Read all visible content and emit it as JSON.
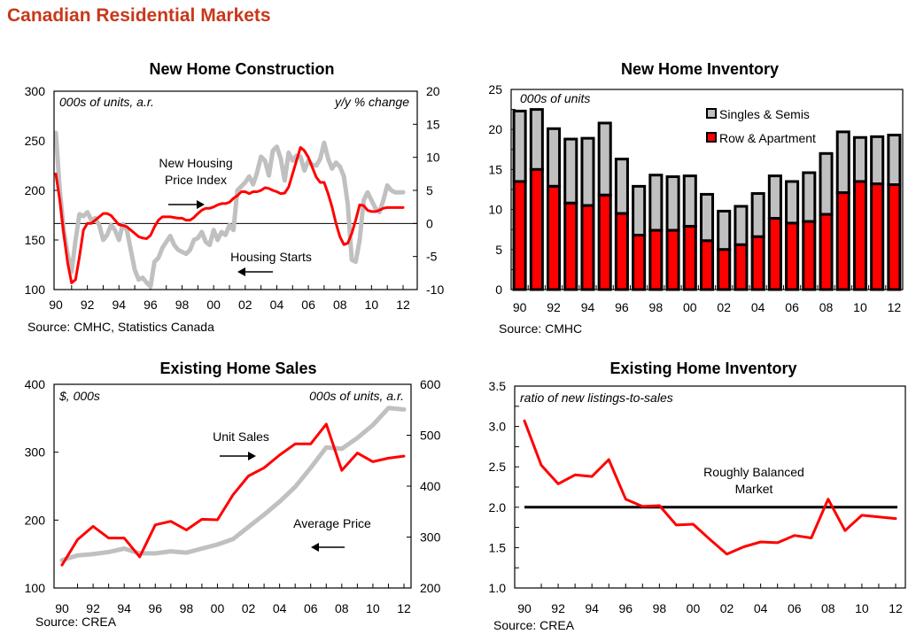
{
  "page": {
    "title": "Canadian Residential Markets"
  },
  "colors": {
    "title": "#c8381b",
    "red": "#ff0000",
    "grey": "#c0c0c0",
    "black": "#000000"
  },
  "chart_data": [
    {
      "id": "new_home_construction",
      "type": "line",
      "title": "New Home Construction",
      "left_unit": "000s of units, a.r.",
      "right_unit": "y/y % change",
      "source": "Source: CMHC, Statistics Canada",
      "ylim_left": [
        100,
        300
      ],
      "yticks_left": [
        "100",
        "150",
        "200",
        "250",
        "300"
      ],
      "ylim_right": [
        -10,
        20
      ],
      "yticks_right": [
        "-10",
        "-5",
        "0",
        "5",
        "10",
        "15",
        "20"
      ],
      "xlim": [
        1990,
        2012
      ],
      "xtick_labels": [
        "90",
        "92",
        "94",
        "96",
        "98",
        "00",
        "02",
        "04",
        "06",
        "08",
        "10",
        "12"
      ],
      "zero_line_right": 0,
      "annotations": [
        {
          "text_lines": [
            "New Housing",
            "Price Index"
          ],
          "arrow": "right"
        },
        {
          "text_lines": [
            "Housing Starts"
          ],
          "arrow": "left"
        }
      ],
      "series": [
        {
          "name": "Housing Starts",
          "axis": "left",
          "color": "#c0c0c0",
          "x": [
            1990.0,
            1990.25,
            1990.5,
            1990.75,
            1991.0,
            1991.25,
            1991.5,
            1991.75,
            1992.0,
            1992.25,
            1992.5,
            1992.75,
            1993.0,
            1993.25,
            1993.5,
            1993.75,
            1994.0,
            1994.25,
            1994.5,
            1994.75,
            1995.0,
            1995.25,
            1995.5,
            1995.75,
            1996.0,
            1996.25,
            1996.5,
            1996.75,
            1997.0,
            1997.25,
            1997.5,
            1997.75,
            1998.0,
            1998.25,
            1998.5,
            1998.75,
            1999.0,
            1999.25,
            1999.5,
            1999.75,
            2000.0,
            2000.25,
            2000.5,
            2000.75,
            2001.0,
            2001.25,
            2001.5,
            2001.75,
            2002.0,
            2002.25,
            2002.5,
            2002.75,
            2003.0,
            2003.25,
            2003.5,
            2003.75,
            2004.0,
            2004.25,
            2004.5,
            2004.75,
            2005.0,
            2005.25,
            2005.5,
            2005.75,
            2006.0,
            2006.25,
            2006.5,
            2006.75,
            2007.0,
            2007.25,
            2007.5,
            2007.75,
            2008.0,
            2008.25,
            2008.5,
            2008.75,
            2009.0,
            2009.25,
            2009.5,
            2009.75,
            2010.0,
            2010.25,
            2010.5,
            2010.75,
            2011.0,
            2011.25,
            2011.5,
            2011.75,
            2012.0
          ],
          "values": [
            258,
            200,
            160,
            135,
            118,
            150,
            176,
            174,
            178,
            170,
            172,
            165,
            150,
            155,
            165,
            160,
            150,
            166,
            160,
            140,
            120,
            110,
            112,
            107,
            103,
            128,
            132,
            142,
            148,
            154,
            145,
            140,
            138,
            136,
            140,
            150,
            152,
            158,
            148,
            145,
            160,
            150,
            158,
            155,
            165,
            160,
            200,
            204,
            208,
            214,
            206,
            218,
            234,
            230,
            215,
            240,
            244,
            232,
            210,
            238,
            230,
            235,
            234,
            220,
            230,
            226,
            225,
            232,
            248,
            232,
            222,
            228,
            224,
            214,
            186,
            130,
            128,
            150,
            190,
            198,
            190,
            182,
            178,
            190,
            205,
            200,
            198,
            198,
            198
          ],
          "unit": "000s of units, a.r."
        },
        {
          "name": "New Housing Price Index",
          "axis": "right",
          "color": "#ff0000",
          "x": [
            1990.0,
            1990.25,
            1990.5,
            1990.75,
            1991.0,
            1991.25,
            1991.5,
            1991.75,
            1992.0,
            1992.25,
            1992.5,
            1992.75,
            1993.0,
            1993.25,
            1993.5,
            1993.75,
            1994.0,
            1994.25,
            1994.5,
            1994.75,
            1995.0,
            1995.25,
            1995.5,
            1995.75,
            1996.0,
            1996.25,
            1996.5,
            1996.75,
            1997.0,
            1997.25,
            1997.5,
            1997.75,
            1998.0,
            1998.25,
            1998.5,
            1998.75,
            1999.0,
            1999.25,
            1999.5,
            1999.75,
            2000.0,
            2000.25,
            2000.5,
            2000.75,
            2001.0,
            2001.25,
            2001.5,
            2001.75,
            2002.0,
            2002.25,
            2002.5,
            2002.75,
            2003.0,
            2003.25,
            2003.5,
            2003.75,
            2004.0,
            2004.25,
            2004.5,
            2004.75,
            2005.0,
            2005.25,
            2005.5,
            2005.75,
            2006.0,
            2006.25,
            2006.5,
            2006.75,
            2007.0,
            2007.25,
            2007.5,
            2007.75,
            2008.0,
            2008.25,
            2008.5,
            2008.75,
            2009.0,
            2009.25,
            2009.5,
            2009.75,
            2010.0,
            2010.25,
            2010.5,
            2010.75,
            2011.0,
            2011.25,
            2011.5,
            2011.75,
            2012.0
          ],
          "values": [
            7.5,
            3.5,
            -1.5,
            -6,
            -9,
            -8.5,
            -5,
            -1,
            0,
            0,
            0.5,
            1,
            1.5,
            1.5,
            1.2,
            0.5,
            -0.2,
            -0.3,
            -0.5,
            -1,
            -1.5,
            -2,
            -2.2,
            -2.3,
            -1.8,
            -0.5,
            0.5,
            1,
            1,
            1,
            0.9,
            0.8,
            0.8,
            0.5,
            0.5,
            0.9,
            1.5,
            2,
            2.3,
            2.3,
            2.5,
            2.8,
            3,
            3,
            3.2,
            3.8,
            4.2,
            4.8,
            4.8,
            4.5,
            4.8,
            4.8,
            5,
            5.4,
            5.3,
            5,
            4.8,
            4.5,
            4.6,
            5.5,
            7.5,
            9.5,
            11.5,
            11,
            10,
            8.5,
            7,
            6.2,
            6.2,
            4.5,
            2.5,
            0,
            -2,
            -3.2,
            -3,
            -1.5,
            0.5,
            2.8,
            2.7,
            2,
            1.8,
            1.8,
            2,
            2.3,
            2.4,
            2.4,
            2.4,
            2.4,
            2.4
          ],
          "unit": "y/y % change"
        }
      ]
    },
    {
      "id": "new_home_inventory",
      "type": "bar",
      "stacked": true,
      "title": "New Home Inventory",
      "unit": "000s of units",
      "source": "Source: CMHC",
      "ylim": [
        0,
        25
      ],
      "yticks": [
        "0",
        "5",
        "10",
        "15",
        "20",
        "25"
      ],
      "categories": [
        "1990",
        "1991",
        "1992",
        "1993",
        "1994",
        "1995",
        "1996",
        "1997",
        "1998",
        "1999",
        "2000",
        "2001",
        "2002",
        "2003",
        "2004",
        "2005",
        "2006",
        "2007",
        "2008",
        "2009",
        "2010",
        "2011",
        "2012"
      ],
      "xtick_labels": [
        "90",
        "92",
        "94",
        "96",
        "98",
        "00",
        "02",
        "04",
        "06",
        "08",
        "10",
        "12"
      ],
      "legend_position": "top-right",
      "series": [
        {
          "name": "Row & Apartment",
          "color": "#ff0000",
          "values": [
            13.5,
            15.0,
            12.9,
            10.8,
            10.5,
            11.8,
            9.5,
            6.8,
            7.4,
            7.4,
            7.9,
            6.1,
            5.0,
            5.6,
            6.6,
            8.9,
            8.3,
            8.5,
            9.4,
            12.1,
            13.5,
            13.2,
            13.1
          ]
        },
        {
          "name": "Singles & Semis",
          "color": "#c0c0c0",
          "values": [
            8.8,
            7.5,
            7.2,
            8.0,
            8.4,
            9.0,
            6.8,
            6.1,
            6.9,
            6.7,
            6.3,
            5.8,
            4.8,
            4.8,
            5.4,
            5.3,
            5.2,
            6.1,
            7.6,
            7.6,
            5.5,
            5.9,
            6.2
          ]
        }
      ],
      "legend": [
        "Singles & Semis",
        "Row & Apartment"
      ]
    },
    {
      "id": "existing_home_sales",
      "type": "line",
      "title": "Existing Home Sales",
      "left_unit": "$, 000s",
      "right_unit": "000s of units, a.r.",
      "source": "Source: CREA",
      "ylim_left": [
        100,
        400
      ],
      "yticks_left": [
        "100",
        "200",
        "300",
        "400"
      ],
      "ylim_right": [
        200,
        600
      ],
      "yticks_right": [
        "200",
        "300",
        "400",
        "500",
        "600"
      ],
      "xlim": [
        1990,
        2012
      ],
      "xtick_labels": [
        "90",
        "92",
        "94",
        "96",
        "98",
        "00",
        "02",
        "04",
        "06",
        "08",
        "10",
        "12"
      ],
      "annotations": [
        {
          "text_lines": [
            "Unit Sales"
          ],
          "arrow": "right"
        },
        {
          "text_lines": [
            "Average Price"
          ],
          "arrow": "left"
        }
      ],
      "series": [
        {
          "name": "Average Price",
          "axis": "left",
          "color": "#c0c0c0",
          "x": [
            1990,
            1991,
            1992,
            1993,
            1994,
            1995,
            1996,
            1997,
            1998,
            1999,
            2000,
            2001,
            2002,
            2003,
            2004,
            2005,
            2006,
            2007,
            2008,
            2009,
            2010,
            2011,
            2012
          ],
          "values": [
            141,
            148,
            150,
            153,
            158,
            151,
            151,
            154,
            152,
            158,
            164,
            172,
            190,
            208,
            227,
            249,
            277,
            307,
            305,
            321,
            340,
            365,
            363
          ],
          "unit": "$, 000s"
        },
        {
          "name": "Unit Sales",
          "axis": "right",
          "color": "#ff0000",
          "x": [
            1990,
            1991,
            1992,
            1993,
            1994,
            1995,
            1996,
            1997,
            1998,
            1999,
            2000,
            2001,
            2002,
            2003,
            2004,
            2005,
            2006,
            2007,
            2008,
            2009,
            2010,
            2011,
            2012
          ],
          "values": [
            245,
            295,
            321,
            298,
            298,
            261,
            324,
            331,
            314,
            335,
            334,
            383,
            420,
            436,
            461,
            483,
            483,
            522,
            431,
            465,
            448,
            455,
            459
          ],
          "unit": "000s of units, a.r."
        }
      ]
    },
    {
      "id": "existing_home_inventory",
      "type": "line",
      "title": "Existing Home Inventory",
      "unit": "ratio of new listings-to-sales",
      "source": "Source: CREA",
      "ylim": [
        1.0,
        3.5
      ],
      "yticks": [
        "1.0",
        "1.5",
        "2.0",
        "2.5",
        "3.0",
        "3.5"
      ],
      "xlim": [
        1990,
        2012
      ],
      "xtick_labels": [
        "90",
        "92",
        "94",
        "96",
        "98",
        "00",
        "02",
        "04",
        "06",
        "08",
        "10",
        "12"
      ],
      "annotations": [
        {
          "text_lines": [
            "Roughly Balanced",
            "Market"
          ]
        }
      ],
      "reference_line": {
        "value": 2.0,
        "color": "#000000",
        "label": "Roughly Balanced Market"
      },
      "series": [
        {
          "name": "Ratio of new listings-to-sales",
          "color": "#ff0000",
          "x": [
            1990,
            1991,
            1992,
            1993,
            1994,
            1995,
            1996,
            1997,
            1998,
            1999,
            2000,
            2001,
            2002,
            2003,
            2004,
            2005,
            2006,
            2007,
            2008,
            2009,
            2010,
            2011,
            2012
          ],
          "values": [
            3.07,
            2.52,
            2.29,
            2.4,
            2.38,
            2.59,
            2.1,
            2.01,
            2.02,
            1.78,
            1.79,
            1.6,
            1.42,
            1.51,
            1.57,
            1.56,
            1.65,
            1.62,
            2.1,
            1.71,
            1.9,
            1.88,
            1.86
          ]
        }
      ]
    }
  ]
}
